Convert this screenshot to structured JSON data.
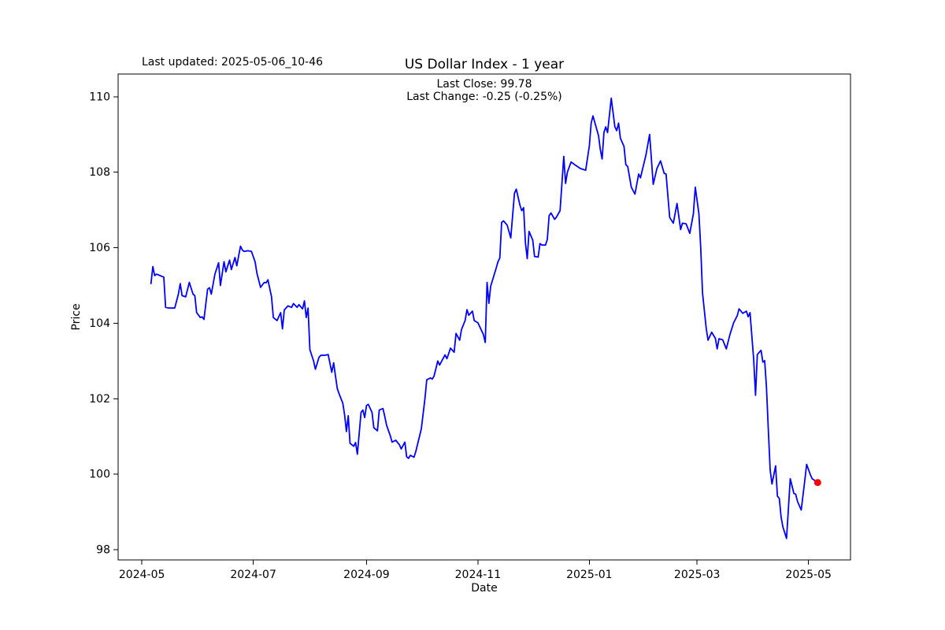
{
  "header": {
    "last_updated": "Last updated: 2025-05-06_10-46",
    "title": "US Dollar Index - 1 year",
    "annotation_line1": "Last Close: 99.78",
    "annotation_line2": "Last Change: -0.25 (-0.25%)"
  },
  "chart_data": {
    "type": "line",
    "title": "US Dollar Index - 1 year",
    "xlabel": "Date",
    "ylabel": "Price",
    "grid": false,
    "legend": "none",
    "line_color": "#0000ff",
    "marker_color": "#ff0000",
    "last_close": 99.78,
    "last_change": "-0.25 (-0.25%)",
    "x_tick_labels": [
      "2024-05",
      "2024-07",
      "2024-09",
      "2024-11",
      "2025-01",
      "2025-03",
      "2025-05"
    ],
    "x_tick_dates": [
      "2024-05-01",
      "2024-07-01",
      "2024-09-01",
      "2024-11-01",
      "2025-01-01",
      "2025-03-01",
      "2025-05-01"
    ],
    "y_ticks": [
      98,
      100,
      102,
      104,
      106,
      108,
      110
    ],
    "xlim": [
      "2024-04-18",
      "2025-05-24"
    ],
    "ylim": [
      97.73,
      110.6
    ],
    "marker": {
      "date": "2025-05-06",
      "value": 99.78
    },
    "series": [
      {
        "name": "US Dollar Index",
        "points": [
          [
            "2024-05-06",
            105.05
          ],
          [
            "2024-05-07",
            105.5
          ],
          [
            "2024-05-08",
            105.26
          ],
          [
            "2024-05-09",
            105.3
          ],
          [
            "2024-05-11",
            105.26
          ],
          [
            "2024-05-13",
            105.22
          ],
          [
            "2024-05-14",
            104.42
          ],
          [
            "2024-05-16",
            104.4
          ],
          [
            "2024-05-19",
            104.4
          ],
          [
            "2024-05-21",
            104.77
          ],
          [
            "2024-05-22",
            105.05
          ],
          [
            "2024-05-23",
            104.73
          ],
          [
            "2024-05-25",
            104.7
          ],
          [
            "2024-05-27",
            105.08
          ],
          [
            "2024-05-29",
            104.77
          ],
          [
            "2024-05-30",
            104.73
          ],
          [
            "2024-05-31",
            104.28
          ],
          [
            "2024-06-02",
            104.15
          ],
          [
            "2024-06-03",
            104.17
          ],
          [
            "2024-06-04",
            104.1
          ],
          [
            "2024-06-06",
            104.9
          ],
          [
            "2024-06-07",
            104.94
          ],
          [
            "2024-06-08",
            104.77
          ],
          [
            "2024-06-10",
            105.3
          ],
          [
            "2024-06-12",
            105.6
          ],
          [
            "2024-06-13",
            105.0
          ],
          [
            "2024-06-15",
            105.63
          ],
          [
            "2024-06-16",
            105.36
          ],
          [
            "2024-06-18",
            105.67
          ],
          [
            "2024-06-19",
            105.42
          ],
          [
            "2024-06-21",
            105.74
          ],
          [
            "2024-06-22",
            105.52
          ],
          [
            "2024-06-24",
            106.04
          ],
          [
            "2024-06-25",
            105.94
          ],
          [
            "2024-06-26",
            105.9
          ],
          [
            "2024-06-28",
            105.92
          ],
          [
            "2024-06-30",
            105.9
          ],
          [
            "2024-07-02",
            105.63
          ],
          [
            "2024-07-03",
            105.32
          ],
          [
            "2024-07-05",
            104.95
          ],
          [
            "2024-07-07",
            105.08
          ],
          [
            "2024-07-08",
            105.07
          ],
          [
            "2024-07-09",
            105.15
          ],
          [
            "2024-07-11",
            104.7
          ],
          [
            "2024-07-12",
            104.15
          ],
          [
            "2024-07-14",
            104.07
          ],
          [
            "2024-07-16",
            104.28
          ],
          [
            "2024-07-17",
            103.85
          ],
          [
            "2024-07-18",
            104.35
          ],
          [
            "2024-07-20",
            104.46
          ],
          [
            "2024-07-22",
            104.42
          ],
          [
            "2024-07-23",
            104.52
          ],
          [
            "2024-07-25",
            104.42
          ],
          [
            "2024-07-26",
            104.49
          ],
          [
            "2024-07-28",
            104.38
          ],
          [
            "2024-07-29",
            104.59
          ],
          [
            "2024-07-30",
            104.15
          ],
          [
            "2024-07-31",
            104.4
          ],
          [
            "2024-08-01",
            103.3
          ],
          [
            "2024-08-03",
            103.0
          ],
          [
            "2024-08-04",
            102.78
          ],
          [
            "2024-08-06",
            103.1
          ],
          [
            "2024-08-07",
            103.15
          ],
          [
            "2024-08-09",
            103.15
          ],
          [
            "2024-08-11",
            103.17
          ],
          [
            "2024-08-13",
            102.7
          ],
          [
            "2024-08-14",
            102.95
          ],
          [
            "2024-08-15",
            102.6
          ],
          [
            "2024-08-16",
            102.27
          ],
          [
            "2024-08-17",
            102.13
          ],
          [
            "2024-08-19",
            101.88
          ],
          [
            "2024-08-20",
            101.57
          ],
          [
            "2024-08-21",
            101.13
          ],
          [
            "2024-08-22",
            101.55
          ],
          [
            "2024-08-23",
            100.82
          ],
          [
            "2024-08-25",
            100.74
          ],
          [
            "2024-08-26",
            100.84
          ],
          [
            "2024-08-27",
            100.53
          ],
          [
            "2024-08-29",
            101.64
          ],
          [
            "2024-08-30",
            101.7
          ],
          [
            "2024-08-31",
            101.5
          ],
          [
            "2024-09-01",
            101.82
          ],
          [
            "2024-09-02",
            101.85
          ],
          [
            "2024-09-04",
            101.64
          ],
          [
            "2024-09-05",
            101.23
          ],
          [
            "2024-09-07",
            101.15
          ],
          [
            "2024-09-08",
            101.7
          ],
          [
            "2024-09-10",
            101.74
          ],
          [
            "2024-09-11",
            101.53
          ],
          [
            "2024-09-12",
            101.3
          ],
          [
            "2024-09-14",
            101.02
          ],
          [
            "2024-09-15",
            100.85
          ],
          [
            "2024-09-17",
            100.9
          ],
          [
            "2024-09-19",
            100.78
          ],
          [
            "2024-09-20",
            100.67
          ],
          [
            "2024-09-22",
            100.85
          ],
          [
            "2024-09-23",
            100.46
          ],
          [
            "2024-09-24",
            100.42
          ],
          [
            "2024-09-25",
            100.5
          ],
          [
            "2024-09-27",
            100.45
          ],
          [
            "2024-09-28",
            100.6
          ],
          [
            "2024-10-01",
            101.2
          ],
          [
            "2024-10-03",
            102.0
          ],
          [
            "2024-10-04",
            102.5
          ],
          [
            "2024-10-06",
            102.55
          ],
          [
            "2024-10-07",
            102.52
          ],
          [
            "2024-10-08",
            102.6
          ],
          [
            "2024-10-10",
            103.0
          ],
          [
            "2024-10-11",
            102.89
          ],
          [
            "2024-10-14",
            103.16
          ],
          [
            "2024-10-15",
            103.06
          ],
          [
            "2024-10-17",
            103.34
          ],
          [
            "2024-10-19",
            103.23
          ],
          [
            "2024-10-20",
            103.73
          ],
          [
            "2024-10-22",
            103.55
          ],
          [
            "2024-10-23",
            103.83
          ],
          [
            "2024-10-25",
            104.07
          ],
          [
            "2024-10-26",
            104.36
          ],
          [
            "2024-10-27",
            104.21
          ],
          [
            "2024-10-29",
            104.32
          ],
          [
            "2024-10-30",
            104.07
          ],
          [
            "2024-11-01",
            104.01
          ],
          [
            "2024-11-04",
            103.7
          ],
          [
            "2024-11-05",
            103.49
          ],
          [
            "2024-11-06",
            105.08
          ],
          [
            "2024-11-07",
            104.53
          ],
          [
            "2024-11-08",
            104.98
          ],
          [
            "2024-11-11",
            105.46
          ],
          [
            "2024-11-12",
            105.63
          ],
          [
            "2024-11-13",
            105.73
          ],
          [
            "2024-11-14",
            106.67
          ],
          [
            "2024-11-15",
            106.71
          ],
          [
            "2024-11-17",
            106.6
          ],
          [
            "2024-11-19",
            106.26
          ],
          [
            "2024-11-21",
            107.44
          ],
          [
            "2024-11-22",
            107.55
          ],
          [
            "2024-11-24",
            107.13
          ],
          [
            "2024-11-25",
            106.98
          ],
          [
            "2024-11-26",
            107.06
          ],
          [
            "2024-11-27",
            106.13
          ],
          [
            "2024-11-28",
            105.71
          ],
          [
            "2024-11-29",
            106.43
          ],
          [
            "2024-12-01",
            106.2
          ],
          [
            "2024-12-02",
            105.77
          ],
          [
            "2024-12-04",
            105.75
          ],
          [
            "2024-12-05",
            106.11
          ],
          [
            "2024-12-06",
            106.07
          ],
          [
            "2024-12-08",
            106.07
          ],
          [
            "2024-12-09",
            106.22
          ],
          [
            "2024-12-10",
            106.85
          ],
          [
            "2024-12-11",
            106.92
          ],
          [
            "2024-12-13",
            106.75
          ],
          [
            "2024-12-14",
            106.81
          ],
          [
            "2024-12-16",
            106.98
          ],
          [
            "2024-12-18",
            108.42
          ],
          [
            "2024-12-19",
            107.7
          ],
          [
            "2024-12-20",
            108.0
          ],
          [
            "2024-12-22",
            108.27
          ],
          [
            "2024-12-24",
            108.2
          ],
          [
            "2024-12-27",
            108.1
          ],
          [
            "2024-12-30",
            108.05
          ],
          [
            "2025-01-01",
            108.7
          ],
          [
            "2025-01-02",
            109.3
          ],
          [
            "2025-01-03",
            109.49
          ],
          [
            "2025-01-06",
            108.97
          ],
          [
            "2025-01-07",
            108.6
          ],
          [
            "2025-01-08",
            108.35
          ],
          [
            "2025-01-09",
            109.05
          ],
          [
            "2025-01-10",
            109.2
          ],
          [
            "2025-01-11",
            109.05
          ],
          [
            "2025-01-13",
            109.96
          ],
          [
            "2025-01-15",
            109.2
          ],
          [
            "2025-01-16",
            109.1
          ],
          [
            "2025-01-17",
            109.3
          ],
          [
            "2025-01-18",
            108.9
          ],
          [
            "2025-01-20",
            108.68
          ],
          [
            "2025-01-21",
            108.2
          ],
          [
            "2025-01-22",
            108.15
          ],
          [
            "2025-01-24",
            107.6
          ],
          [
            "2025-01-26",
            107.42
          ],
          [
            "2025-01-28",
            107.95
          ],
          [
            "2025-01-29",
            107.85
          ],
          [
            "2025-02-01",
            108.45
          ],
          [
            "2025-02-03",
            109.0
          ],
          [
            "2025-02-05",
            107.68
          ],
          [
            "2025-02-07",
            108.1
          ],
          [
            "2025-02-09",
            108.3
          ],
          [
            "2025-02-11",
            107.97
          ],
          [
            "2025-02-12",
            107.95
          ],
          [
            "2025-02-14",
            106.8
          ],
          [
            "2025-02-16",
            106.65
          ],
          [
            "2025-02-18",
            107.17
          ],
          [
            "2025-02-20",
            106.48
          ],
          [
            "2025-02-21",
            106.65
          ],
          [
            "2025-02-23",
            106.63
          ],
          [
            "2025-02-25",
            106.38
          ],
          [
            "2025-02-27",
            106.9
          ],
          [
            "2025-02-28",
            107.6
          ],
          [
            "2025-03-02",
            106.9
          ],
          [
            "2025-03-03",
            106.0
          ],
          [
            "2025-03-04",
            104.8
          ],
          [
            "2025-03-06",
            103.86
          ],
          [
            "2025-03-07",
            103.55
          ],
          [
            "2025-03-09",
            103.76
          ],
          [
            "2025-03-11",
            103.6
          ],
          [
            "2025-03-12",
            103.32
          ],
          [
            "2025-03-13",
            103.59
          ],
          [
            "2025-03-15",
            103.56
          ],
          [
            "2025-03-17",
            103.32
          ],
          [
            "2025-03-19",
            103.7
          ],
          [
            "2025-03-21",
            104.01
          ],
          [
            "2025-03-23",
            104.2
          ],
          [
            "2025-03-24",
            104.38
          ],
          [
            "2025-03-26",
            104.26
          ],
          [
            "2025-03-28",
            104.32
          ],
          [
            "2025-03-29",
            104.17
          ],
          [
            "2025-03-30",
            104.28
          ],
          [
            "2025-04-01",
            103.03
          ],
          [
            "2025-04-02",
            102.09
          ],
          [
            "2025-04-03",
            103.17
          ],
          [
            "2025-04-05",
            103.28
          ],
          [
            "2025-04-06",
            102.97
          ],
          [
            "2025-04-07",
            103.01
          ],
          [
            "2025-04-08",
            102.3
          ],
          [
            "2025-04-09",
            101.2
          ],
          [
            "2025-04-10",
            100.11
          ],
          [
            "2025-04-11",
            99.74
          ],
          [
            "2025-04-13",
            100.22
          ],
          [
            "2025-04-14",
            99.42
          ],
          [
            "2025-04-15",
            99.36
          ],
          [
            "2025-04-16",
            98.86
          ],
          [
            "2025-04-17",
            98.6
          ],
          [
            "2025-04-19",
            98.3
          ],
          [
            "2025-04-21",
            99.88
          ],
          [
            "2025-04-23",
            99.49
          ],
          [
            "2025-04-24",
            99.47
          ],
          [
            "2025-04-25",
            99.28
          ],
          [
            "2025-04-27",
            99.05
          ],
          [
            "2025-04-29",
            99.84
          ],
          [
            "2025-04-30",
            100.26
          ],
          [
            "2025-05-02",
            99.99
          ],
          [
            "2025-05-03",
            99.88
          ],
          [
            "2025-05-06",
            99.78
          ]
        ]
      }
    ]
  }
}
